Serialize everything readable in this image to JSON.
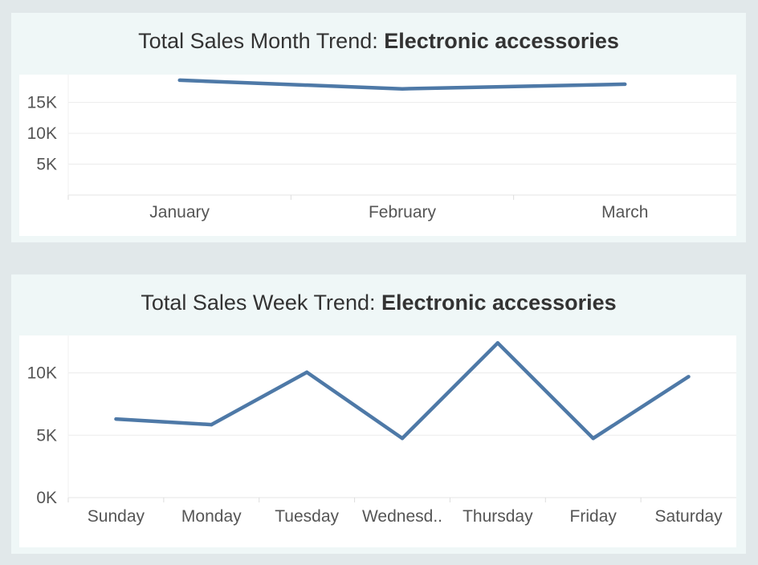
{
  "charts": {
    "month": {
      "title_prefix": "Total Sales Month Trend: ",
      "title_emphasis": "Electronic accessories"
    },
    "week": {
      "title_prefix": "Total Sales Week Trend: ",
      "title_emphasis": "Electronic accessories"
    }
  },
  "colors": {
    "line": "#4e79a7",
    "grid": "#ececec",
    "panel_bg": "#eff7f7",
    "page_bg": "#e1e8ea"
  },
  "chart_data": [
    {
      "type": "line",
      "title": "Total Sales Month Trend: Electronic accessories",
      "categories": [
        "January",
        "February",
        "March"
      ],
      "values": [
        18600,
        17200,
        17950
      ],
      "y_ticks": [
        {
          "value": 5000,
          "label": "5K"
        },
        {
          "value": 10000,
          "label": "10K"
        },
        {
          "value": 15000,
          "label": "15K"
        }
      ],
      "ylim": [
        0,
        19500
      ],
      "grid": true
    },
    {
      "type": "line",
      "title": "Total Sales Week Trend: Electronic accessories",
      "categories": [
        "Sunday",
        "Monday",
        "Tuesday",
        "Wednesd..",
        "Thursday",
        "Friday",
        "Saturday"
      ],
      "values": [
        6300,
        5850,
        10050,
        4750,
        12400,
        4750,
        9700
      ],
      "y_ticks": [
        {
          "value": 0,
          "label": "0K"
        },
        {
          "value": 5000,
          "label": "5K"
        },
        {
          "value": 10000,
          "label": "10K"
        }
      ],
      "ylim": [
        0,
        13000
      ],
      "grid": true
    }
  ]
}
